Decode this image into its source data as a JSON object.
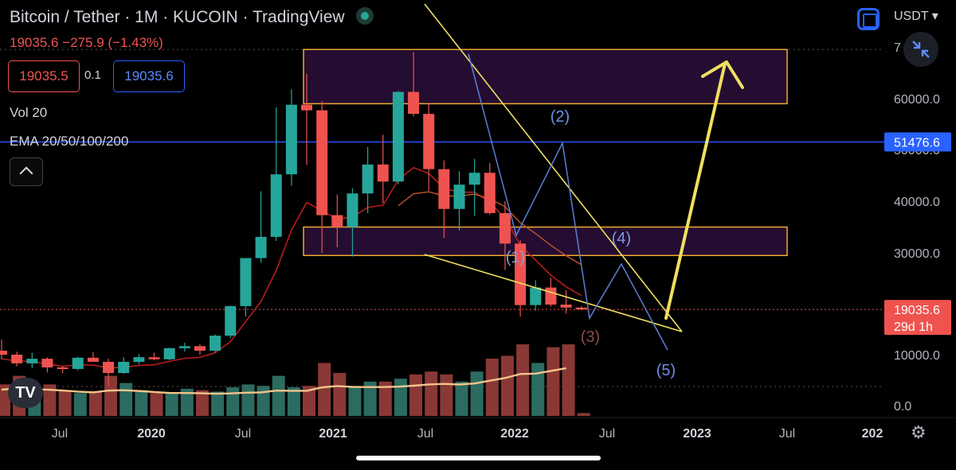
{
  "header": {
    "title": "Bitcoin / Tether · 1M · KUCOIN · TradingView",
    "change": "19035.6  −275.9 (−1.43%)"
  },
  "quote": {
    "sell": "19035.5",
    "spread": "0.1",
    "buy": "19035.6"
  },
  "indicators": {
    "vol": "Vol 20",
    "ema": "EMA 20/50/100/200"
  },
  "currency": "USDT",
  "colors": {
    "up": "#26a69a",
    "down": "#ef5350",
    "zone_border": "#f0a830",
    "zone_fill": "#2a0f3a",
    "trend": "#f0e060",
    "wave": "#5b7fd6",
    "hline": "#2a4fff",
    "ema20": "#b71c1c",
    "ema_vol": "#f5c48a"
  },
  "icons": [
    "live-dot-icon",
    "collapse-arrow-icon",
    "chart-square-icon",
    "compress-icon",
    "tradingview-logo-icon",
    "gear-icon"
  ],
  "chart_data": {
    "type": "candlestick",
    "title": "Bitcoin / Tether · 1M · KUCOIN · TradingView",
    "y_ticks": [
      0,
      10000,
      20000,
      30000,
      40000,
      50000,
      60000,
      70000
    ],
    "y_tick_labels": [
      "0.0",
      "10000.0",
      "20000.0",
      "30000.0",
      "40000.0",
      "60000.0"
    ],
    "y_scale": "log-like (price) with volume pane",
    "x_tick_labels": [
      "Jul",
      "2020",
      "Jul",
      "2021",
      "Jul",
      "2022",
      "Jul",
      "2023",
      "Jul",
      "202"
    ],
    "candles": [
      {
        "o": 10800,
        "h": 13000,
        "l": 9100,
        "c": 10000
      },
      {
        "o": 10000,
        "h": 10600,
        "l": 7700,
        "c": 8300
      },
      {
        "o": 8300,
        "h": 10400,
        "l": 7400,
        "c": 9200
      },
      {
        "o": 9200,
        "h": 9500,
        "l": 6500,
        "c": 7500
      },
      {
        "o": 7500,
        "h": 7700,
        "l": 6400,
        "c": 7200
      },
      {
        "o": 7200,
        "h": 9600,
        "l": 6900,
        "c": 9400
      },
      {
        "o": 9400,
        "h": 10500,
        "l": 8600,
        "c": 8600
      },
      {
        "o": 8600,
        "h": 9200,
        "l": 3800,
        "c": 6400
      },
      {
        "o": 6400,
        "h": 9500,
        "l": 6200,
        "c": 8600
      },
      {
        "o": 8600,
        "h": 10100,
        "l": 8100,
        "c": 9500
      },
      {
        "o": 9500,
        "h": 10400,
        "l": 8900,
        "c": 9100
      },
      {
        "o": 9100,
        "h": 11400,
        "l": 8900,
        "c": 11300
      },
      {
        "o": 11300,
        "h": 12400,
        "l": 10600,
        "c": 11700
      },
      {
        "o": 11700,
        "h": 12100,
        "l": 10000,
        "c": 10800
      },
      {
        "o": 10800,
        "h": 14000,
        "l": 10400,
        "c": 13800
      },
      {
        "o": 13800,
        "h": 19800,
        "l": 13300,
        "c": 19700
      },
      {
        "o": 19700,
        "h": 29000,
        "l": 17600,
        "c": 29000
      },
      {
        "o": 29000,
        "h": 41900,
        "l": 28100,
        "c": 33100
      },
      {
        "o": 33100,
        "h": 58300,
        "l": 32300,
        "c": 45200
      },
      {
        "o": 45200,
        "h": 61800,
        "l": 43000,
        "c": 58800
      },
      {
        "o": 58800,
        "h": 64800,
        "l": 47000,
        "c": 57700
      },
      {
        "o": 57700,
        "h": 59500,
        "l": 30000,
        "c": 37300
      },
      {
        "o": 37300,
        "h": 41300,
        "l": 31100,
        "c": 35000
      },
      {
        "o": 35000,
        "h": 42500,
        "l": 29300,
        "c": 41500
      },
      {
        "o": 41500,
        "h": 50500,
        "l": 37700,
        "c": 47100
      },
      {
        "o": 47100,
        "h": 52900,
        "l": 39600,
        "c": 43800
      },
      {
        "o": 43800,
        "h": 61500,
        "l": 43300,
        "c": 61300
      },
      {
        "o": 61300,
        "h": 69000,
        "l": 56500,
        "c": 57000
      },
      {
        "o": 57000,
        "h": 59100,
        "l": 42000,
        "c": 46200
      },
      {
        "o": 46200,
        "h": 47900,
        "l": 32900,
        "c": 38500
      },
      {
        "o": 38500,
        "h": 45800,
        "l": 34300,
        "c": 43200
      },
      {
        "o": 43200,
        "h": 48200,
        "l": 37200,
        "c": 45500
      },
      {
        "o": 45500,
        "h": 47400,
        "l": 37400,
        "c": 37700
      },
      {
        "o": 37700,
        "h": 40000,
        "l": 26700,
        "c": 31800
      },
      {
        "o": 31800,
        "h": 32400,
        "l": 17600,
        "c": 19900
      },
      {
        "o": 19900,
        "h": 24700,
        "l": 18800,
        "c": 23300
      },
      {
        "o": 23300,
        "h": 25200,
        "l": 19600,
        "c": 20000
      },
      {
        "o": 20000,
        "h": 22800,
        "l": 18200,
        "c": 19400
      },
      {
        "o": 19400,
        "h": 19700,
        "l": 18900,
        "c": 19035.6
      }
    ],
    "volume": [
      44,
      56,
      35,
      44,
      36,
      32,
      34,
      56,
      46,
      36,
      32,
      32,
      38,
      36,
      34,
      40,
      44,
      42,
      56,
      40,
      42,
      74,
      60,
      42,
      48,
      48,
      52,
      58,
      62,
      58,
      48,
      62,
      80,
      84,
      100,
      74,
      96,
      100,
      4
    ],
    "volume_colors": [
      "down",
      "down",
      "up",
      "down",
      "down",
      "up",
      "down",
      "down",
      "up",
      "up",
      "down",
      "up",
      "up",
      "down",
      "up",
      "up",
      "up",
      "up",
      "up",
      "up",
      "down",
      "down",
      "down",
      "up",
      "up",
      "down",
      "up",
      "down",
      "down",
      "down",
      "up",
      "up",
      "down",
      "down",
      "down",
      "up",
      "down",
      "down",
      "down"
    ],
    "series": [
      {
        "name": "EMA 20/50/100/200"
      },
      {
        "name": "Vol 20"
      }
    ],
    "horizontal_line": 51476.6,
    "last_price": {
      "value": "19035.6",
      "countdown": "29d 1h"
    },
    "zones": [
      {
        "from": 59000,
        "to": 69500
      },
      {
        "from": 29500,
        "to": 35000
      }
    ],
    "wave_labels": [
      "(1)",
      "(2)",
      "(3)",
      "(4)",
      "(5)"
    ]
  }
}
